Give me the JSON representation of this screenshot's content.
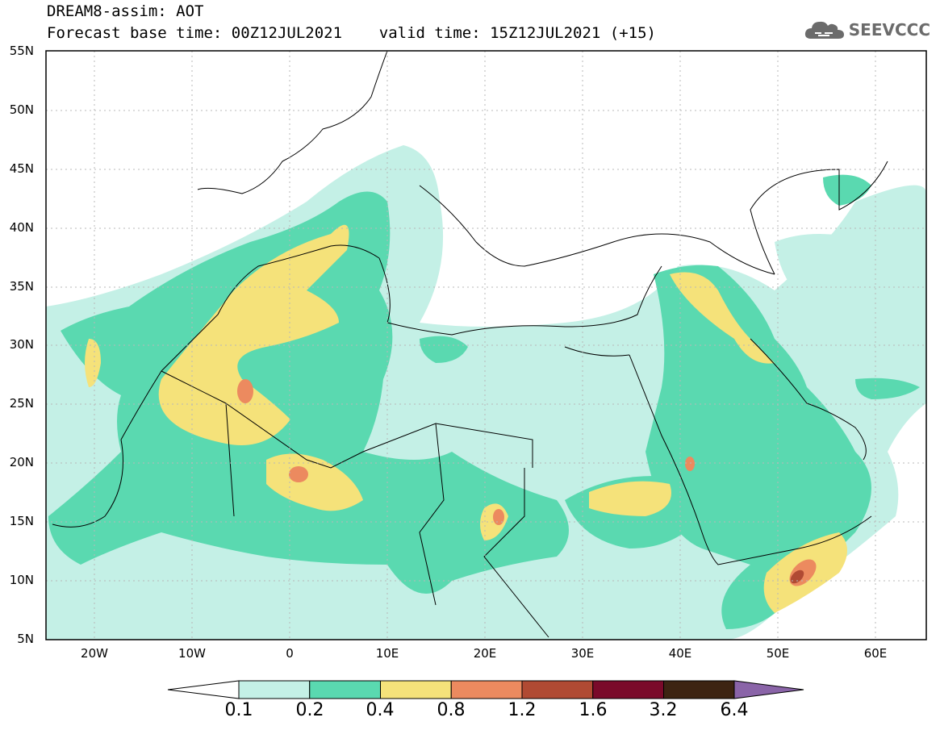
{
  "header": {
    "title_line1": "DREAM8-assim: AOT",
    "title_line2": "Forecast base time: 00Z12JUL2021    valid time: 15Z12JUL2021 (+15)"
  },
  "logo": {
    "text": "SEEVCCC",
    "icon": "cloud-icon"
  },
  "map": {
    "lat_labels": [
      "55N",
      "50N",
      "45N",
      "40N",
      "35N",
      "30N",
      "25N",
      "20N",
      "15N",
      "10N",
      "5N"
    ],
    "lon_labels": [
      "20W",
      "10W",
      "0",
      "10E",
      "20E",
      "30E",
      "40E",
      "50E",
      "60E"
    ],
    "background": "#ffffff",
    "border_color": "#000000"
  },
  "colorbar": {
    "labels": [
      "0.1",
      "0.2",
      "0.4",
      "0.8",
      "1.2",
      "1.6",
      "3.2",
      "6.4"
    ],
    "colors": [
      "#ffffff",
      "#c4f0e6",
      "#5ad9b0",
      "#f5e27a",
      "#ec8a5f",
      "#b04a33",
      "#7a0a2a",
      "#3d2412",
      "#8a64a8"
    ]
  }
}
